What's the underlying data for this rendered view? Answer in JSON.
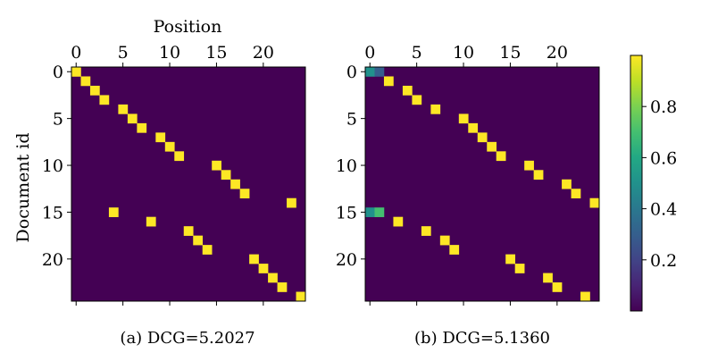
{
  "chart_data": [
    {
      "type": "heatmap",
      "title": "",
      "caption": "(a) DCG=5.2027",
      "xlabel": "Position",
      "ylabel": "Document id",
      "n_positions": 25,
      "n_documents": 25,
      "xticks": [
        0,
        5,
        10,
        15,
        20
      ],
      "yticks": [
        0,
        5,
        10,
        15,
        20
      ],
      "background_value": 0,
      "cells": [
        {
          "doc": 0,
          "pos": 0,
          "value": 1
        },
        {
          "doc": 1,
          "pos": 1,
          "value": 1
        },
        {
          "doc": 2,
          "pos": 2,
          "value": 1
        },
        {
          "doc": 3,
          "pos": 3,
          "value": 1
        },
        {
          "doc": 4,
          "pos": 5,
          "value": 1
        },
        {
          "doc": 5,
          "pos": 6,
          "value": 1
        },
        {
          "doc": 6,
          "pos": 7,
          "value": 1
        },
        {
          "doc": 7,
          "pos": 9,
          "value": 1
        },
        {
          "doc": 8,
          "pos": 10,
          "value": 1
        },
        {
          "doc": 9,
          "pos": 11,
          "value": 1
        },
        {
          "doc": 10,
          "pos": 15,
          "value": 1
        },
        {
          "doc": 11,
          "pos": 16,
          "value": 1
        },
        {
          "doc": 12,
          "pos": 17,
          "value": 1
        },
        {
          "doc": 13,
          "pos": 18,
          "value": 1
        },
        {
          "doc": 14,
          "pos": 23,
          "value": 1
        },
        {
          "doc": 15,
          "pos": 4,
          "value": 1
        },
        {
          "doc": 16,
          "pos": 8,
          "value": 1
        },
        {
          "doc": 17,
          "pos": 12,
          "value": 1
        },
        {
          "doc": 18,
          "pos": 13,
          "value": 1
        },
        {
          "doc": 19,
          "pos": 14,
          "value": 1
        },
        {
          "doc": 20,
          "pos": 19,
          "value": 1
        },
        {
          "doc": 21,
          "pos": 20,
          "value": 1
        },
        {
          "doc": 22,
          "pos": 21,
          "value": 1
        },
        {
          "doc": 23,
          "pos": 22,
          "value": 1
        },
        {
          "doc": 24,
          "pos": 24,
          "value": 1
        }
      ]
    },
    {
      "type": "heatmap",
      "title": "",
      "caption": "(b) DCG=5.1360",
      "xlabel": "",
      "ylabel": "",
      "n_positions": 25,
      "n_documents": 25,
      "xticks": [
        0,
        5,
        10,
        15,
        20
      ],
      "yticks": [
        0,
        5,
        10,
        15,
        20
      ],
      "background_value": 0,
      "cells": [
        {
          "doc": 0,
          "pos": 0,
          "value": 0.5
        },
        {
          "doc": 0,
          "pos": 1,
          "value": 0.3
        },
        {
          "doc": 1,
          "pos": 2,
          "value": 1
        },
        {
          "doc": 2,
          "pos": 4,
          "value": 1
        },
        {
          "doc": 3,
          "pos": 5,
          "value": 1
        },
        {
          "doc": 4,
          "pos": 7,
          "value": 1
        },
        {
          "doc": 5,
          "pos": 10,
          "value": 1
        },
        {
          "doc": 6,
          "pos": 11,
          "value": 1
        },
        {
          "doc": 7,
          "pos": 12,
          "value": 1
        },
        {
          "doc": 8,
          "pos": 13,
          "value": 1
        },
        {
          "doc": 9,
          "pos": 14,
          "value": 1
        },
        {
          "doc": 10,
          "pos": 17,
          "value": 1
        },
        {
          "doc": 11,
          "pos": 18,
          "value": 1
        },
        {
          "doc": 12,
          "pos": 21,
          "value": 1
        },
        {
          "doc": 13,
          "pos": 22,
          "value": 1
        },
        {
          "doc": 14,
          "pos": 24,
          "value": 1
        },
        {
          "doc": 15,
          "pos": 0,
          "value": 0.5
        },
        {
          "doc": 15,
          "pos": 1,
          "value": 0.7
        },
        {
          "doc": 16,
          "pos": 3,
          "value": 1
        },
        {
          "doc": 17,
          "pos": 6,
          "value": 1
        },
        {
          "doc": 18,
          "pos": 8,
          "value": 1
        },
        {
          "doc": 19,
          "pos": 9,
          "value": 1
        },
        {
          "doc": 20,
          "pos": 15,
          "value": 1
        },
        {
          "doc": 21,
          "pos": 16,
          "value": 1
        },
        {
          "doc": 22,
          "pos": 19,
          "value": 1
        },
        {
          "doc": 23,
          "pos": 20,
          "value": 1
        },
        {
          "doc": 24,
          "pos": 23,
          "value": 1
        }
      ]
    }
  ],
  "colorbar": {
    "colormap": "viridis",
    "range": [
      0,
      1
    ],
    "ticks": [
      0.2,
      0.4,
      0.6,
      0.8
    ],
    "tick_labels": [
      "0.2",
      "0.4",
      "0.6",
      "0.8"
    ]
  }
}
